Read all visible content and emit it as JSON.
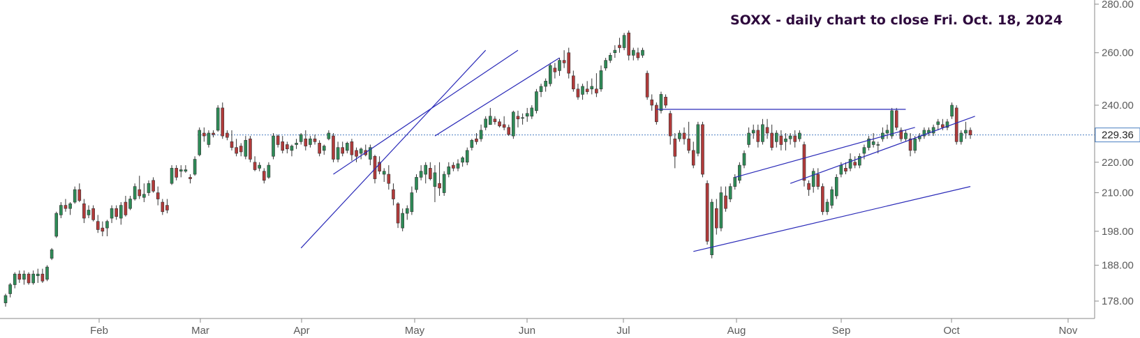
{
  "chart_data": {
    "type": "candlestick",
    "title": "SOXX - daily chart to close Fri. Oct. 18, 2024",
    "y_axis": {
      "scale": "log",
      "ticks": [
        "280.00",
        "260.00",
        "240.00",
        "229.36",
        "220.00",
        "210.00",
        "198.00",
        "188.00",
        "178.00"
      ],
      "range": [
        173,
        281
      ]
    },
    "x_axis": {
      "ticks": [
        "Feb",
        "Mar",
        "Apr",
        "May",
        "Jun",
        "Jul",
        "Aug",
        "Sep",
        "Oct",
        "Nov"
      ]
    },
    "last_close": "229.36",
    "colors": {
      "up": "#2e8b57",
      "down": "#b23a3a",
      "trendline": "#2a2ab8",
      "reference": "#4a7fc1"
    },
    "candles": [
      [
        177.5,
        180,
        176.5,
        179.5
      ],
      [
        180,
        183,
        179,
        182.5
      ],
      [
        182.5,
        186,
        181.5,
        185.5
      ],
      [
        185.5,
        186.5,
        183,
        184
      ],
      [
        184,
        186.5,
        182.5,
        185.5
      ],
      [
        185.5,
        186,
        182.5,
        183
      ],
      [
        183,
        186.5,
        182.5,
        185.5
      ],
      [
        185,
        187,
        183,
        185.5
      ],
      [
        185.5,
        187,
        183,
        183.5
      ],
      [
        184,
        188,
        183.5,
        187.5
      ],
      [
        190,
        193,
        189.5,
        192.5
      ],
      [
        196.5,
        204,
        196,
        203.5
      ],
      [
        203,
        207,
        202,
        206
      ],
      [
        206,
        208,
        204,
        205
      ],
      [
        205,
        207,
        203,
        206.5
      ],
      [
        207,
        212,
        206.5,
        211
      ],
      [
        211,
        213,
        207,
        207.5
      ],
      [
        206.5,
        208,
        200.5,
        202
      ],
      [
        203,
        206,
        202,
        204.5
      ],
      [
        205,
        206,
        201,
        201.5
      ],
      [
        201,
        203,
        197.5,
        198.5
      ],
      [
        199,
        201,
        196.5,
        198
      ],
      [
        199,
        201.5,
        196.5,
        201
      ],
      [
        202,
        206,
        200.5,
        205
      ],
      [
        205,
        206,
        201.5,
        202.5
      ],
      [
        202,
        207,
        200,
        206
      ],
      [
        207,
        209,
        202.5,
        203
      ],
      [
        205,
        209,
        204.5,
        208
      ],
      [
        208,
        213,
        207.5,
        212
      ],
      [
        211,
        215.5,
        208,
        209
      ],
      [
        208.5,
        213,
        207,
        209.5
      ],
      [
        210,
        214,
        209,
        213
      ],
      [
        214,
        215,
        210,
        210.5
      ],
      [
        210,
        212,
        206,
        208
      ],
      [
        207,
        208,
        203,
        204
      ],
      [
        206,
        208,
        203.5,
        204.5
      ],
      [
        213,
        219,
        212.5,
        218
      ],
      [
        218,
        219,
        214,
        215
      ],
      [
        217,
        219,
        215,
        217.5
      ],
      [
        217,
        219,
        216.5,
        217.5
      ],
      [
        215,
        216,
        213,
        214.5
      ],
      [
        216,
        222,
        215.5,
        221
      ],
      [
        222.5,
        232,
        222,
        231
      ],
      [
        230,
        232,
        227,
        229
      ],
      [
        226,
        231,
        225,
        230
      ],
      [
        230,
        231,
        228.5,
        229.5
      ],
      [
        231,
        240,
        230.5,
        239
      ],
      [
        239,
        241,
        228,
        229
      ],
      [
        230,
        231,
        227.5,
        228.5
      ],
      [
        227,
        231,
        224,
        225
      ],
      [
        225,
        228,
        222,
        223
      ],
      [
        225.5,
        226.5,
        222,
        223.5
      ],
      [
        222,
        229,
        221,
        227.5
      ],
      [
        228,
        229,
        220,
        221
      ],
      [
        220,
        222,
        217,
        217.5
      ],
      [
        218,
        220,
        217,
        219
      ],
      [
        217,
        218,
        213,
        214
      ],
      [
        215,
        220,
        214.5,
        219
      ],
      [
        222,
        230,
        221,
        229
      ],
      [
        229,
        229.5,
        225,
        226
      ],
      [
        227,
        229,
        223,
        224
      ],
      [
        226,
        227,
        223,
        224.5
      ],
      [
        224,
        226,
        222,
        225.5
      ],
      [
        226,
        228,
        224.5,
        226.5
      ],
      [
        227,
        230,
        226,
        229.5
      ],
      [
        228,
        231,
        224,
        225.5
      ],
      [
        226,
        229,
        225,
        228
      ],
      [
        228,
        229.5,
        226,
        227
      ],
      [
        226.5,
        227.5,
        222,
        223
      ],
      [
        224,
        226,
        222.5,
        225.5
      ],
      [
        228,
        231,
        227.5,
        230
      ],
      [
        229,
        230,
        220,
        221
      ],
      [
        221,
        227,
        220,
        225
      ],
      [
        225,
        227,
        222,
        223
      ],
      [
        224,
        227,
        223,
        226.5
      ],
      [
        227,
        228,
        220.5,
        222.5
      ],
      [
        224,
        225,
        220,
        222
      ],
      [
        223,
        225,
        221,
        224.5
      ],
      [
        224,
        226,
        222,
        222.5
      ],
      [
        221,
        226,
        219,
        225
      ],
      [
        222,
        222.5,
        213,
        214.5
      ],
      [
        220,
        222,
        216,
        217
      ],
      [
        216,
        218,
        213.5,
        217
      ],
      [
        216,
        219,
        211,
        213
      ],
      [
        211,
        213,
        206,
        208
      ],
      [
        206.5,
        207,
        199,
        200.5
      ],
      [
        199,
        205,
        198,
        203.5
      ],
      [
        203.5,
        206,
        201.5,
        205
      ],
      [
        204,
        212,
        203,
        210
      ],
      [
        211,
        216,
        210,
        215
      ],
      [
        215,
        219,
        214,
        217
      ],
      [
        216,
        220,
        213,
        219
      ],
      [
        218,
        220,
        214,
        214.5
      ],
      [
        212,
        219,
        207,
        216.5
      ],
      [
        213,
        220,
        209,
        211.5
      ],
      [
        210,
        217,
        209,
        216
      ],
      [
        216,
        220,
        215,
        218.5
      ],
      [
        219,
        220,
        217,
        218
      ],
      [
        218,
        221,
        217,
        219.5
      ],
      [
        220,
        222,
        218.5,
        221.5
      ],
      [
        220,
        225,
        219,
        224
      ],
      [
        225,
        228,
        224,
        227.5
      ],
      [
        228,
        230,
        226,
        227
      ],
      [
        228,
        233,
        227,
        231
      ],
      [
        232,
        236,
        231,
        235
      ],
      [
        233,
        239,
        233,
        236
      ],
      [
        235,
        236,
        233,
        234
      ],
      [
        234,
        235,
        232,
        232.5
      ],
      [
        233,
        236,
        231,
        232
      ],
      [
        232,
        233,
        229,
        229.5
      ],
      [
        229,
        238,
        228,
        237.5
      ],
      [
        236,
        238,
        232,
        235
      ],
      [
        235.5,
        237,
        233,
        235.5
      ],
      [
        236,
        239,
        234,
        237
      ],
      [
        236,
        240,
        235,
        239
      ],
      [
        238,
        246,
        237,
        245
      ],
      [
        245,
        248,
        243,
        247
      ],
      [
        247,
        250,
        245,
        249
      ],
      [
        248,
        256,
        247,
        255
      ],
      [
        254,
        256,
        250,
        252.5
      ],
      [
        253,
        258,
        251,
        257
      ],
      [
        257,
        261,
        254,
        256
      ],
      [
        260,
        262,
        250,
        252
      ],
      [
        251,
        253,
        245,
        246
      ],
      [
        246,
        248,
        242,
        243
      ],
      [
        244,
        248,
        242,
        247
      ],
      [
        246,
        249,
        244,
        245
      ],
      [
        246,
        250,
        244,
        247
      ],
      [
        246,
        252,
        243,
        244.5
      ],
      [
        246,
        255,
        245,
        253
      ],
      [
        254,
        258,
        253,
        257
      ],
      [
        257,
        260,
        256,
        259
      ],
      [
        260,
        263,
        258,
        261
      ],
      [
        263,
        266,
        260,
        262
      ],
      [
        262,
        268,
        261,
        267
      ],
      [
        268,
        269,
        257,
        259
      ],
      [
        259,
        262,
        257,
        261
      ],
      [
        260,
        262,
        257,
        258
      ],
      [
        259,
        262,
        258,
        261
      ],
      [
        252,
        253,
        242,
        243
      ],
      [
        242,
        244,
        238,
        240
      ],
      [
        240,
        241,
        233,
        234
      ],
      [
        238,
        245,
        237,
        244
      ],
      [
        243,
        244,
        239,
        240
      ],
      [
        237,
        238,
        226,
        229
      ],
      [
        228,
        230,
        218,
        222
      ],
      [
        228,
        231,
        227,
        230
      ],
      [
        230,
        232,
        226,
        228
      ],
      [
        228,
        234,
        223,
        224
      ],
      [
        224,
        227,
        218,
        219
      ],
      [
        223,
        234,
        222,
        233
      ],
      [
        233,
        234,
        215,
        216
      ],
      [
        213,
        214,
        194,
        195
      ],
      [
        191,
        208,
        190,
        207
      ],
      [
        205,
        208,
        197,
        199
      ],
      [
        199,
        212,
        198,
        210
      ],
      [
        209,
        212,
        204,
        205
      ],
      [
        208,
        213,
        207,
        212
      ],
      [
        212,
        216,
        211,
        215
      ],
      [
        214,
        220,
        213,
        219
      ],
      [
        219,
        224,
        218,
        223
      ],
      [
        226,
        232,
        225,
        230
      ],
      [
        230,
        233,
        228,
        231
      ],
      [
        231,
        233,
        225,
        227
      ],
      [
        227,
        235,
        226,
        233
      ],
      [
        232,
        235,
        228,
        230
      ],
      [
        230,
        233,
        224,
        225
      ],
      [
        227,
        231,
        225,
        230
      ],
      [
        229,
        231,
        224,
        226
      ],
      [
        227,
        230,
        224,
        228
      ],
      [
        228,
        230,
        226,
        229
      ],
      [
        229,
        231,
        225,
        227
      ],
      [
        228,
        231,
        227,
        230
      ],
      [
        226,
        227,
        212,
        214
      ],
      [
        213,
        214,
        209,
        211
      ],
      [
        212,
        218,
        210,
        217
      ],
      [
        216,
        218,
        211,
        212
      ],
      [
        212,
        213,
        203,
        204
      ],
      [
        204,
        208,
        203,
        207
      ],
      [
        206,
        212,
        205,
        211
      ],
      [
        209,
        216,
        208,
        215
      ],
      [
        216,
        220,
        215,
        219
      ],
      [
        218,
        220,
        216,
        217
      ],
      [
        218,
        223,
        217,
        221
      ],
      [
        220,
        222,
        218,
        219
      ],
      [
        219,
        223,
        218,
        222
      ],
      [
        223,
        226,
        221,
        225
      ],
      [
        225,
        229,
        224,
        228
      ],
      [
        226,
        230,
        225,
        227
      ],
      [
        226,
        227,
        223,
        226
      ],
      [
        228,
        232,
        227,
        230
      ],
      [
        230,
        233,
        228,
        231
      ],
      [
        229,
        239,
        228,
        238
      ],
      [
        238,
        239,
        231,
        232
      ],
      [
        231,
        232,
        227,
        228
      ],
      [
        228,
        231,
        227,
        230
      ],
      [
        228,
        230,
        222,
        224
      ],
      [
        224,
        229,
        223,
        228
      ],
      [
        228,
        230,
        227,
        229
      ],
      [
        229,
        232,
        228,
        231
      ],
      [
        230,
        232,
        229,
        231
      ],
      [
        230,
        233,
        229,
        232
      ],
      [
        233,
        235,
        231,
        234
      ],
      [
        233,
        235,
        231,
        232
      ],
      [
        232,
        235,
        231,
        234
      ],
      [
        236,
        241,
        235,
        240
      ],
      [
        239,
        240,
        226,
        227
      ],
      [
        227,
        231,
        226,
        230
      ],
      [
        230,
        234,
        228,
        231
      ],
      [
        231,
        232,
        228,
        229.36
      ]
    ],
    "trendlines": [
      {
        "x": [
          64,
          104
        ],
        "y": [
          193,
          261
        ]
      },
      {
        "x": [
          71,
          111
        ],
        "y": [
          216,
          261
        ]
      },
      {
        "x": [
          93,
          120
        ],
        "y": [
          229,
          258
        ]
      },
      {
        "x": [
          149,
          209
        ],
        "y": [
          192,
          212
        ]
      },
      {
        "x": [
          170,
          210
        ],
        "y": [
          213,
          236
        ]
      },
      {
        "x": [
          141,
          195
        ],
        "y": [
          238.5,
          238.5
        ]
      },
      {
        "x": [
          158,
          197
        ],
        "y": [
          215,
          232
        ]
      }
    ],
    "reference_line": {
      "y": 229.36
    }
  }
}
